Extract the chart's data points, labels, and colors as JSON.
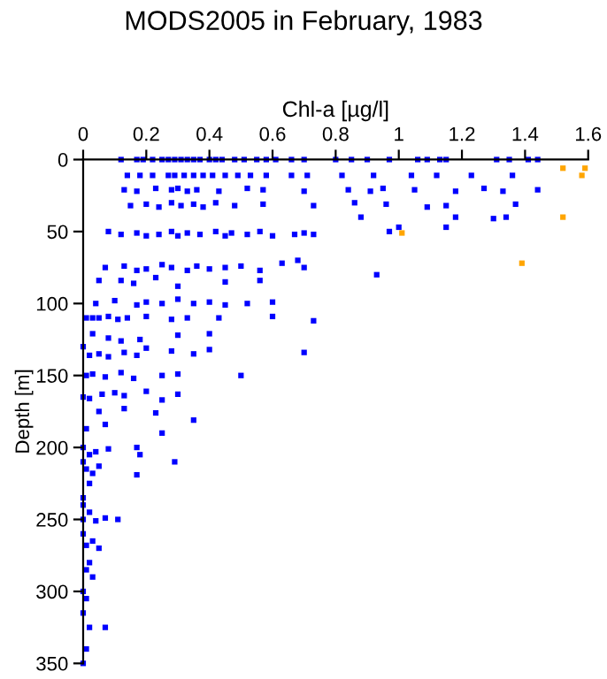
{
  "chart_data": {
    "type": "scatter",
    "title": "MODS2005 in February, 1983",
    "xlabel": "Chl-a [µg/l]",
    "ylabel": "Depth [m]",
    "xlim": [
      0,
      1.6
    ],
    "xticks": [
      0,
      0.2,
      0.4,
      0.6,
      0.8,
      1,
      1.2,
      1.4,
      1.6
    ],
    "ylim": [
      350,
      0
    ],
    "yticks": [
      0,
      50,
      100,
      150,
      200,
      250,
      300,
      350
    ],
    "marker": "square",
    "grid": false,
    "legend": false,
    "series": [
      {
        "color": "#0000ff",
        "x": [
          0.12,
          0.17,
          0.19,
          0.22,
          0.25,
          0.27,
          0.29,
          0.31,
          0.33,
          0.35,
          0.37,
          0.4,
          0.42,
          0.44,
          0.48,
          0.51,
          0.55,
          0.58,
          0.61,
          0.66,
          0.7,
          0.8,
          0.85,
          0.9,
          0.97,
          1.06,
          1.09,
          1.13,
          1.15,
          1.31,
          1.35,
          1.41,
          1.44,
          0.14,
          0.18,
          0.22,
          0.27,
          0.29,
          0.32,
          0.35,
          0.38,
          0.41,
          0.45,
          0.49,
          0.53,
          0.58,
          0.66,
          0.71,
          0.82,
          0.92,
          1.04,
          1.12,
          1.23,
          1.36,
          0.13,
          0.17,
          0.23,
          0.28,
          0.3,
          0.33,
          0.36,
          0.43,
          0.52,
          0.57,
          0.7,
          0.84,
          0.91,
          0.95,
          1.05,
          1.18,
          1.27,
          1.33,
          1.44,
          0.15,
          0.2,
          0.24,
          0.28,
          0.31,
          0.35,
          0.38,
          0.42,
          0.48,
          0.57,
          0.73,
          0.86,
          0.96,
          1.09,
          1.15,
          1.37,
          0.88,
          1.18,
          1.3,
          1.34,
          1.0,
          1.15,
          0.08,
          0.12,
          0.17,
          0.2,
          0.24,
          0.28,
          0.3,
          0.33,
          0.37,
          0.42,
          0.45,
          0.47,
          0.52,
          0.56,
          0.6,
          0.67,
          0.7,
          0.73,
          0.97,
          0.07,
          0.13,
          0.17,
          0.2,
          0.25,
          0.28,
          0.33,
          0.36,
          0.4,
          0.45,
          0.5,
          0.56,
          0.63,
          0.7,
          0.93,
          0.68,
          0.05,
          0.12,
          0.16,
          0.23,
          0.3,
          0.45,
          0.56,
          0.04,
          0.1,
          0.17,
          0.2,
          0.25,
          0.3,
          0.35,
          0.4,
          0.45,
          0.52,
          0.6,
          0.01,
          0.03,
          0.05,
          0.08,
          0.11,
          0.14,
          0.2,
          0.28,
          0.33,
          0.43,
          0.6,
          0.73,
          0.03,
          0.08,
          0.12,
          0.18,
          0.3,
          0.4,
          0.0,
          0.02,
          0.05,
          0.08,
          0.13,
          0.17,
          0.2,
          0.28,
          0.35,
          0.4,
          0.7,
          0.01,
          0.03,
          0.07,
          0.12,
          0.16,
          0.25,
          0.3,
          0.5,
          0.0,
          0.02,
          0.06,
          0.1,
          0.13,
          0.2,
          0.25,
          0.3,
          0.05,
          0.13,
          0.23,
          0.01,
          0.07,
          0.25,
          0.35,
          0.0,
          0.02,
          0.04,
          0.08,
          0.18,
          0.17,
          0.0,
          0.01,
          0.03,
          0.05,
          0.17,
          0.29,
          0.02,
          0.0,
          0.0,
          0.0,
          0.02,
          0.04,
          0.07,
          0.11,
          0.0,
          0.01,
          0.03,
          0.05,
          0.02,
          0.01,
          0.03,
          0.0,
          0.01,
          0.0,
          0.02,
          0.07,
          0.01,
          0.0
        ],
        "values": [
          0,
          0,
          0,
          0,
          0,
          0,
          0,
          0,
          0,
          0,
          0,
          0,
          0,
          0,
          0,
          0,
          0,
          0,
          0,
          0,
          0,
          0,
          0,
          0,
          0,
          0,
          0,
          0,
          0,
          0,
          0,
          0,
          0,
          11,
          11,
          11,
          11,
          11,
          11,
          11,
          11,
          11,
          11,
          11,
          11,
          11,
          11,
          11,
          11,
          11,
          11,
          11,
          11,
          11,
          21,
          22,
          20,
          21,
          20,
          22,
          21,
          22,
          20,
          21,
          22,
          21,
          22,
          20,
          21,
          22,
          20,
          22,
          21,
          32,
          31,
          33,
          30,
          32,
          31,
          33,
          30,
          32,
          31,
          32,
          30,
          31,
          33,
          32,
          31,
          40,
          40,
          41,
          40,
          47,
          47,
          50,
          52,
          51,
          53,
          52,
          50,
          53,
          51,
          52,
          50,
          53,
          51,
          52,
          50,
          53,
          52,
          51,
          52,
          50,
          75,
          74,
          77,
          76,
          73,
          75,
          77,
          74,
          76,
          75,
          74,
          77,
          72,
          75,
          80,
          70,
          84,
          84,
          86,
          82,
          88,
          85,
          84,
          100,
          98,
          101,
          99,
          100,
          97,
          100,
          99,
          101,
          100,
          99,
          110,
          110,
          110,
          109,
          111,
          110,
          109,
          111,
          110,
          110,
          109,
          112,
          121,
          124,
          126,
          125,
          122,
          121,
          130,
          136,
          135,
          137,
          134,
          136,
          131,
          133,
          135,
          132,
          134,
          150,
          149,
          151,
          148,
          152,
          150,
          149,
          150,
          165,
          166,
          163,
          162,
          164,
          161,
          167,
          163,
          175,
          173,
          176,
          187,
          184,
          190,
          181,
          200,
          205,
          203,
          201,
          205,
          200,
          210,
          215,
          218,
          213,
          219,
          210,
          225,
          235,
          240,
          250,
          245,
          251,
          249,
          250,
          260,
          268,
          265,
          270,
          280,
          285,
          290,
          300,
          305,
          315,
          325,
          325,
          340,
          350
        ]
      },
      {
        "color": "#ffa500",
        "x": [
          1.52,
          1.59,
          1.58,
          1.52,
          1.01,
          1.39
        ],
        "values": [
          6,
          6,
          11,
          40,
          51,
          72
        ]
      }
    ]
  }
}
